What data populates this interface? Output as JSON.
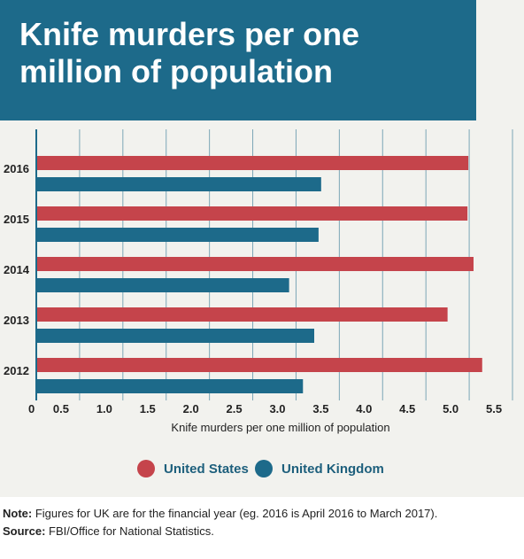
{
  "header": {
    "title": "Knife murders per one million of population"
  },
  "colors": {
    "us": "#c5444b",
    "uk": "#1d6a8a",
    "title_bg": "#1d6a8a",
    "panel_bg": "#f2f2ee",
    "grid": "#1d6a8a",
    "text": "#222222"
  },
  "chart_data": {
    "type": "bar",
    "orientation": "horizontal",
    "categories": [
      "2016",
      "2015",
      "2014",
      "2013",
      "2012"
    ],
    "series": [
      {
        "name": "United States",
        "values": [
          4.99,
          4.98,
          5.05,
          4.75,
          5.15
        ]
      },
      {
        "name": "United Kingdom",
        "values": [
          3.29,
          3.26,
          2.92,
          3.21,
          3.08
        ]
      }
    ],
    "x_ticks": [
      "0",
      "0.5",
      "1.0",
      "1.5",
      "2.0",
      "2.5",
      "3.0",
      "3.5",
      "4.0",
      "4.5",
      "5.0",
      "5.5"
    ],
    "xlim": [
      0,
      5.5
    ],
    "xlabel": "Knife murders per one million of population",
    "grid": true,
    "legend_position": "bottom"
  },
  "notes": {
    "note_label": "Note:",
    "note_text": " Figures for UK are for the financial year (eg. 2016 is April 2016 to March 2017).",
    "source_label": "Source:",
    "source_text": " FBI/Office for National Statistics."
  }
}
